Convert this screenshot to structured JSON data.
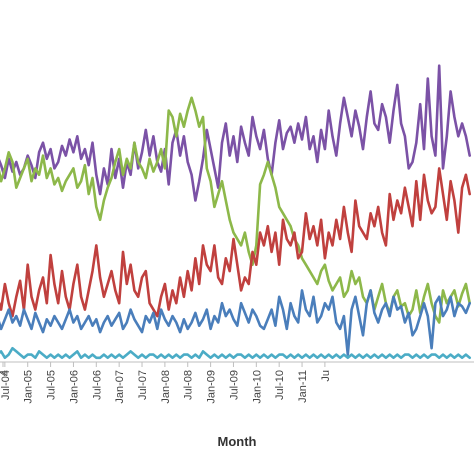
{
  "chart_data": {
    "type": "line",
    "title": "",
    "xlabel": "Month",
    "ylabel": "",
    "grid": false,
    "legend": "none",
    "x_start": "Jan-04",
    "x_end": "Apr-11",
    "tick_labels": [
      "Jul-04",
      "Jan-05",
      "Jul-05",
      "Jan-06",
      "Jul-06",
      "Jan-07",
      "Jul-07",
      "Jan-08",
      "Jul-08",
      "Jan-09",
      "Jul-09",
      "Jan-10",
      "Jul-10",
      "Jan-11"
    ],
    "partial_left_tick": "4",
    "partial_right_tick": "Ju",
    "ylim": [
      0,
      100
    ],
    "series": [
      {
        "color": "#7B52A6",
        "values": [
          62,
          60,
          63,
          58,
          64,
          61,
          57,
          63,
          59,
          62,
          58,
          60,
          64,
          61,
          57,
          65,
          68,
          63,
          66,
          60,
          62,
          67,
          64,
          69,
          65,
          70,
          63,
          66,
          61,
          68,
          58,
          52,
          60,
          55,
          66,
          57,
          63,
          54,
          62,
          58,
          68,
          60,
          65,
          72,
          64,
          70,
          62,
          59,
          66,
          55,
          68,
          72,
          64,
          70,
          62,
          58,
          50,
          56,
          63,
          72,
          66,
          60,
          54,
          68,
          74,
          64,
          70,
          62,
          73,
          68,
          64,
          76,
          70,
          66,
          72,
          63,
          58,
          68,
          75,
          66,
          71,
          73,
          68,
          74,
          69,
          76,
          66,
          70,
          62,
          72,
          66,
          78,
          70,
          64,
          74,
          82,
          76,
          70,
          78,
          73,
          66,
          76,
          84,
          74,
          72,
          80,
          76,
          68,
          78,
          86,
          74,
          70,
          60,
          62,
          68,
          80,
          66,
          88,
          70,
          64,
          92,
          60,
          70,
          84,
          76,
          70,
          74,
          70,
          64
        ]
      },
      {
        "color": "#8DB84A",
        "values": [
          50,
          55,
          60,
          64,
          62,
          56,
          60,
          65,
          62,
          54,
          57,
          60,
          63,
          56,
          60,
          58,
          64,
          57,
          60,
          55,
          57,
          53,
          56,
          58,
          60,
          54,
          56,
          61,
          52,
          57,
          48,
          44,
          50,
          54,
          57,
          62,
          66,
          58,
          63,
          60,
          68,
          62,
          60,
          57,
          63,
          59,
          62,
          66,
          60,
          78,
          76,
          70,
          77,
          73,
          78,
          82,
          78,
          73,
          76,
          60,
          56,
          48,
          52,
          56,
          50,
          44,
          40,
          38,
          36,
          40,
          34,
          30,
          36,
          55,
          58,
          62,
          58,
          54,
          48,
          46,
          44,
          42,
          38,
          36,
          32,
          30,
          28,
          26,
          24,
          28,
          30,
          25,
          22,
          24,
          26,
          20,
          22,
          28,
          24,
          26,
          20,
          18,
          22,
          16,
          20,
          24,
          18,
          15,
          20,
          22,
          17,
          18,
          14,
          16,
          22,
          15,
          20,
          24,
          18,
          14,
          12,
          22,
          18,
          20,
          22,
          17,
          21,
          24,
          18
        ]
      },
      {
        "color": "#C0403E",
        "values": [
          35,
          25,
          18,
          14,
          20,
          16,
          24,
          18,
          14,
          20,
          25,
          16,
          30,
          20,
          16,
          22,
          26,
          18,
          33,
          24,
          18,
          28,
          20,
          16,
          24,
          30,
          20,
          16,
          22,
          28,
          36,
          26,
          20,
          24,
          28,
          22,
          18,
          34,
          24,
          30,
          22,
          20,
          26,
          28,
          18,
          16,
          14,
          20,
          24,
          16,
          22,
          18,
          26,
          20,
          28,
          22,
          32,
          24,
          36,
          30,
          28,
          36,
          26,
          24,
          32,
          28,
          38,
          30,
          22,
          26,
          24,
          34,
          30,
          40,
          36,
          42,
          34,
          40,
          30,
          44,
          38,
          36,
          40,
          32,
          34,
          46,
          38,
          42,
          36,
          44,
          32,
          40,
          36,
          44,
          38,
          48,
          40,
          34,
          50,
          42,
          40,
          38,
          46,
          42,
          48,
          40,
          36,
          52,
          44,
          50,
          46,
          54,
          48,
          42,
          56,
          44,
          58,
          50,
          46,
          48,
          60,
          52,
          44,
          56,
          50,
          40,
          54,
          58,
          52
        ]
      },
      {
        "color": "#4A7EBB",
        "values": [
          15,
          14,
          13,
          12,
          14,
          10,
          13,
          16,
          12,
          14,
          11,
          16,
          13,
          10,
          15,
          12,
          9,
          13,
          11,
          14,
          12,
          10,
          13,
          16,
          12,
          14,
          10,
          12,
          14,
          11,
          13,
          9,
          12,
          14,
          11,
          13,
          15,
          10,
          12,
          16,
          13,
          11,
          9,
          14,
          12,
          15,
          10,
          16,
          13,
          11,
          14,
          12,
          9,
          13,
          10,
          12,
          15,
          11,
          13,
          16,
          10,
          14,
          12,
          18,
          14,
          16,
          13,
          11,
          18,
          15,
          12,
          16,
          14,
          11,
          10,
          13,
          16,
          11,
          20,
          16,
          10,
          18,
          14,
          12,
          22,
          16,
          14,
          20,
          12,
          14,
          18,
          16,
          20,
          12,
          10,
          14,
          2,
          16,
          20,
          14,
          8,
          18,
          22,
          15,
          12,
          16,
          18,
          14,
          20,
          16,
          17,
          12,
          15,
          8,
          10,
          14,
          18,
          14,
          4,
          18,
          20,
          14,
          16,
          20,
          14,
          18,
          17,
          15,
          18
        ]
      },
      {
        "color": "#4BACC6",
        "values": [
          2,
          3,
          2,
          1,
          2,
          3,
          1,
          2,
          4,
          3,
          2,
          1,
          2,
          2,
          1,
          3,
          2,
          1,
          2,
          1,
          2,
          1,
          2,
          1,
          2,
          3,
          1,
          2,
          1,
          2,
          1,
          1,
          2,
          1,
          2,
          1,
          2,
          1,
          2,
          3,
          2,
          1,
          2,
          1,
          2,
          2,
          1,
          2,
          1,
          2,
          1,
          2,
          1,
          2,
          2,
          1,
          2,
          1,
          3,
          2,
          1,
          2,
          1,
          2,
          1,
          2,
          1,
          2,
          2,
          1,
          2,
          1,
          2,
          1,
          2,
          1,
          2,
          1,
          2,
          2,
          1,
          2,
          1,
          2,
          1,
          2,
          1,
          2,
          1,
          2,
          1,
          2,
          1,
          2,
          1,
          2,
          1,
          2,
          1,
          2,
          1,
          2,
          1,
          2,
          1,
          2,
          1,
          2,
          1,
          2,
          1,
          2,
          2,
          1,
          2,
          1,
          2,
          1,
          2,
          2,
          1,
          2,
          1,
          2,
          1,
          2,
          1,
          2,
          1
        ]
      }
    ]
  }
}
